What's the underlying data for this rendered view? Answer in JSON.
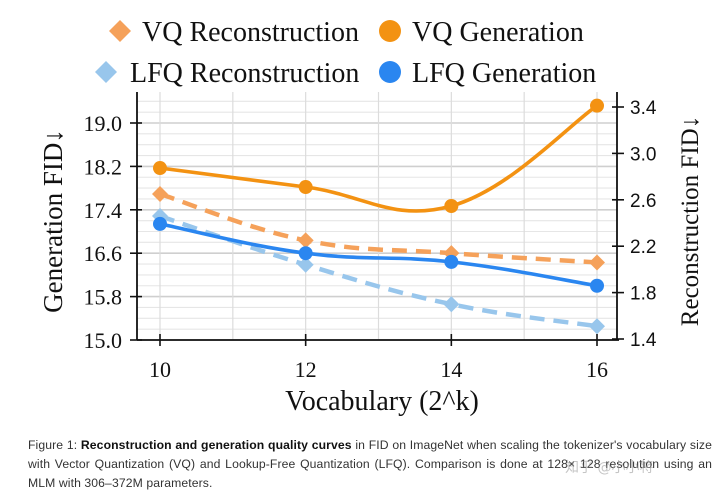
{
  "chart_data": {
    "type": "line",
    "title": "",
    "xlabel": "Vocabulary (2^k)",
    "ylabel_left": "Generation FID↓",
    "ylabel_right": "Reconstruction FID↓",
    "x": [
      10,
      12,
      14,
      16
    ],
    "x_ticks": [
      "10",
      "12",
      "14",
      "16"
    ],
    "xlim": [
      9.6,
      16.6
    ],
    "ylim_left": [
      15.0,
      19.6
    ],
    "ylim_right": [
      1.4,
      3.5
    ],
    "yticks_left": [
      "19.0",
      "18.2",
      "17.4",
      "16.6",
      "15.8",
      "15.0"
    ],
    "yticks_left_values": [
      19.0,
      18.2,
      17.4,
      16.6,
      15.8,
      15.0
    ],
    "yticks_right": [
      "3.4",
      "3.0",
      "2.6",
      "2.2",
      "1.8",
      "1.4"
    ],
    "yticks_right_values": [
      3.4,
      3.0,
      2.6,
      2.2,
      1.8,
      1.4
    ],
    "grid": true,
    "legend_position": "top",
    "series": [
      {
        "name": "VQ Reconstruction",
        "axis": "right",
        "style": "dashed",
        "marker": "diamond",
        "color": "#F5A15A",
        "values": [
          2.65,
          2.25,
          2.14,
          2.06
        ]
      },
      {
        "name": "VQ Generation",
        "axis": "left",
        "style": "solid",
        "marker": "circle",
        "color": "#F39212",
        "values": [
          18.17,
          17.82,
          17.47,
          19.32
        ]
      },
      {
        "name": "LFQ Reconstruction",
        "axis": "right",
        "style": "dashed",
        "marker": "diamond",
        "color": "#98C6EC",
        "values": [
          2.46,
          2.04,
          1.7,
          1.51
        ]
      },
      {
        "name": "LFQ Generation",
        "axis": "left",
        "style": "solid",
        "marker": "circle",
        "color": "#2A86F0",
        "values": [
          17.14,
          16.6,
          16.44,
          16.0
        ]
      }
    ]
  },
  "caption": {
    "prefix": "Figure 1: ",
    "bold": "Reconstruction and generation quality curves",
    "rest": " in FID on ImageNet when scaling the tokenizer's vocabulary size with Vector Quantization (VQ) and Lookup-Free Quantization (LFQ). Comparison is done at 128× 128 resolution using an MLM with 306–372M parameters."
  },
  "watermark": "知乎 @小小将"
}
